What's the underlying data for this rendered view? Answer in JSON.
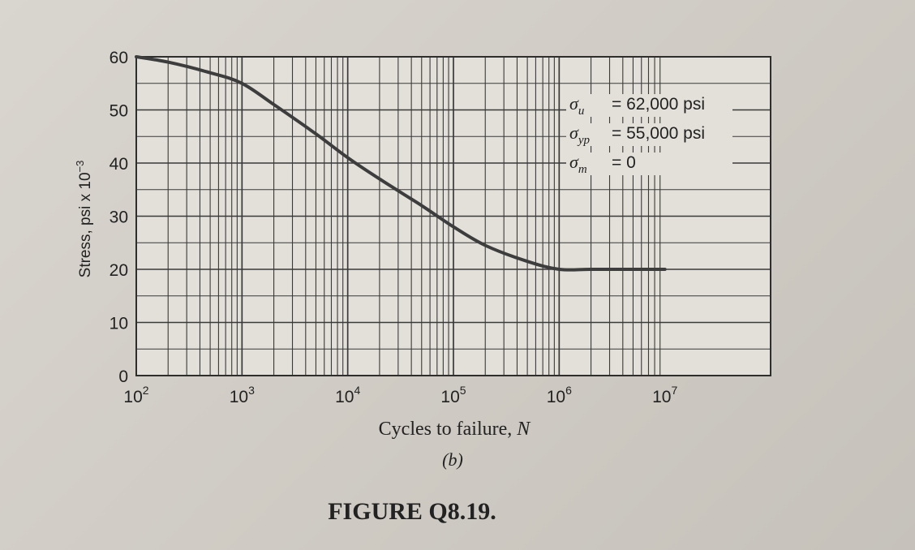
{
  "chart_data": {
    "type": "line",
    "x_scale": "log",
    "xlabel_prefix": "Cycles to failure, ",
    "xlabel_var": "N",
    "ylabel_text": "Stress, psi x 10",
    "ylabel_exp": "−3",
    "xlim": [
      100,
      10000000
    ],
    "ylim": [
      0,
      60
    ],
    "x_ticks": [
      {
        "base": "10",
        "exp": "2",
        "value": 100
      },
      {
        "base": "10",
        "exp": "3",
        "value": 1000
      },
      {
        "base": "10",
        "exp": "4",
        "value": 10000
      },
      {
        "base": "10",
        "exp": "5",
        "value": 100000
      },
      {
        "base": "10",
        "exp": "6",
        "value": 1000000
      },
      {
        "base": "10",
        "exp": "7",
        "value": 10000000
      }
    ],
    "y_ticks": [
      "0",
      "10",
      "20",
      "30",
      "40",
      "50",
      "60"
    ],
    "grid": true,
    "series": [
      {
        "x": [
          100,
          200,
          500,
          1000,
          2000,
          5000,
          10000,
          20000,
          50000,
          100000,
          200000,
          500000,
          1000000,
          2000000,
          5000000,
          10000000
        ],
        "y": [
          60,
          59,
          57,
          55,
          51,
          45.5,
          41,
          37,
          32,
          28,
          24.5,
          21.5,
          20,
          20,
          20,
          20
        ]
      }
    ],
    "annotations": [
      {
        "symbol": "σ",
        "sub": "u",
        "text": "= 62,000 psi"
      },
      {
        "symbol": "σ",
        "sub": "yp",
        "text": "= 55,000 psi"
      },
      {
        "symbol": "σ",
        "sub": "m",
        "text": "= 0"
      }
    ]
  },
  "subfigure_label": "(b)",
  "caption": "FIGURE Q8.19."
}
